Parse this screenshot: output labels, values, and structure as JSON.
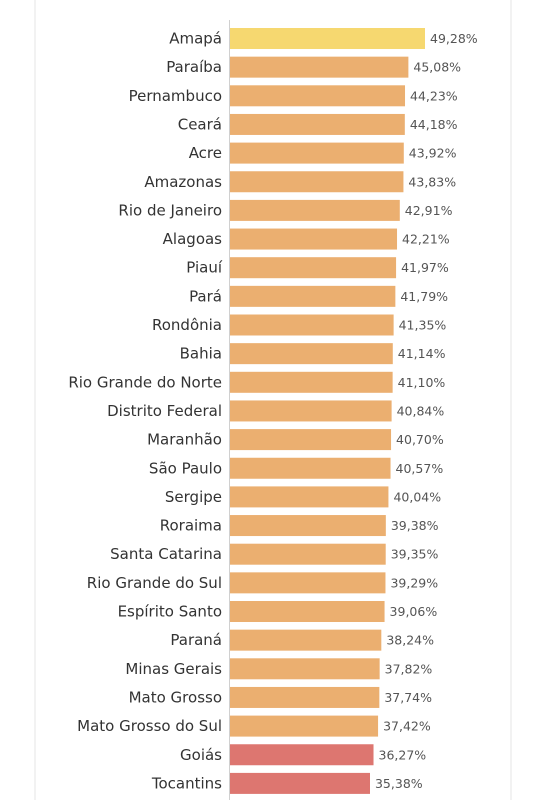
{
  "chart_data": {
    "type": "bar",
    "orientation": "horizontal",
    "categories": [
      "Amapá",
      "Paraíba",
      "Pernambuco",
      "Ceará",
      "Acre",
      "Amazonas",
      "Rio de Janeiro",
      "Alagoas",
      "Piauí",
      "Pará",
      "Rondônia",
      "Bahia",
      "Rio Grande do Norte",
      "Distrito Federal",
      "Maranhão",
      "São Paulo",
      "Sergipe",
      "Roraima",
      "Santa Catarina",
      "Rio Grande do Sul",
      "Espírito Santo",
      "Paraná",
      "Minas Gerais",
      "Mato Grosso",
      "Mato Grosso do Sul",
      "Goiás",
      "Tocantins"
    ],
    "values": [
      49.28,
      45.08,
      44.23,
      44.18,
      43.92,
      43.83,
      42.91,
      42.21,
      41.97,
      41.79,
      41.35,
      41.14,
      41.1,
      40.84,
      40.7,
      40.57,
      40.04,
      39.38,
      39.35,
      39.29,
      39.06,
      38.24,
      37.82,
      37.74,
      37.42,
      36.27,
      35.38
    ],
    "value_labels": [
      "49,28%",
      "45,08%",
      "44,23%",
      "44,18%",
      "43,92%",
      "43,83%",
      "42,91%",
      "42,21%",
      "41,97%",
      "41,79%",
      "41,35%",
      "41,14%",
      "41,10%",
      "40,84%",
      "40,70%",
      "40,57%",
      "40,04%",
      "39,38%",
      "39,35%",
      "39,29%",
      "39,06%",
      "38,24%",
      "37,82%",
      "37,74%",
      "37,42%",
      "36,27%",
      "35,38%"
    ],
    "bar_colors": [
      "#f6d870",
      "#ebaf70",
      "#ebaf70",
      "#ebaf70",
      "#ebaf70",
      "#ebaf70",
      "#ebaf70",
      "#ebaf70",
      "#ebaf70",
      "#ebaf70",
      "#ebaf70",
      "#ebaf70",
      "#ebaf70",
      "#ebaf70",
      "#ebaf70",
      "#ebaf70",
      "#ebaf70",
      "#ebaf70",
      "#ebaf70",
      "#ebaf70",
      "#ebaf70",
      "#ebaf70",
      "#ebaf70",
      "#ebaf70",
      "#ebaf70",
      "#dd7670",
      "#dd7670"
    ],
    "xlim": [
      0,
      50
    ],
    "title": "",
    "xlabel": "",
    "ylabel": "",
    "grid": false,
    "legend": "none"
  }
}
